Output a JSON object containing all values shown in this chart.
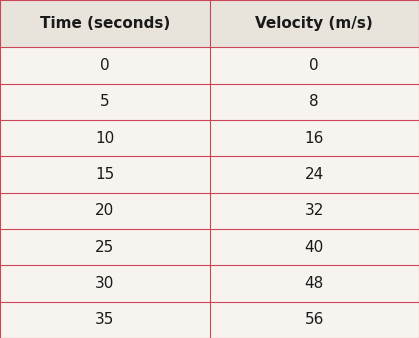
{
  "col1_header": "Time (seconds)",
  "col2_header": "Velocity (m/s)",
  "rows": [
    [
      "0",
      "0"
    ],
    [
      "5",
      "8"
    ],
    [
      "10",
      "16"
    ],
    [
      "15",
      "24"
    ],
    [
      "20",
      "32"
    ],
    [
      "25",
      "40"
    ],
    [
      "30",
      "48"
    ],
    [
      "35",
      "56"
    ]
  ],
  "header_bg": "#e8e4dc",
  "row_bg": "#f7f4ef",
  "divider_color": "#cc4455",
  "header_font_size": 11,
  "cell_font_size": 11,
  "fig_bg": "#f7f4ef",
  "col_split": 0.5
}
